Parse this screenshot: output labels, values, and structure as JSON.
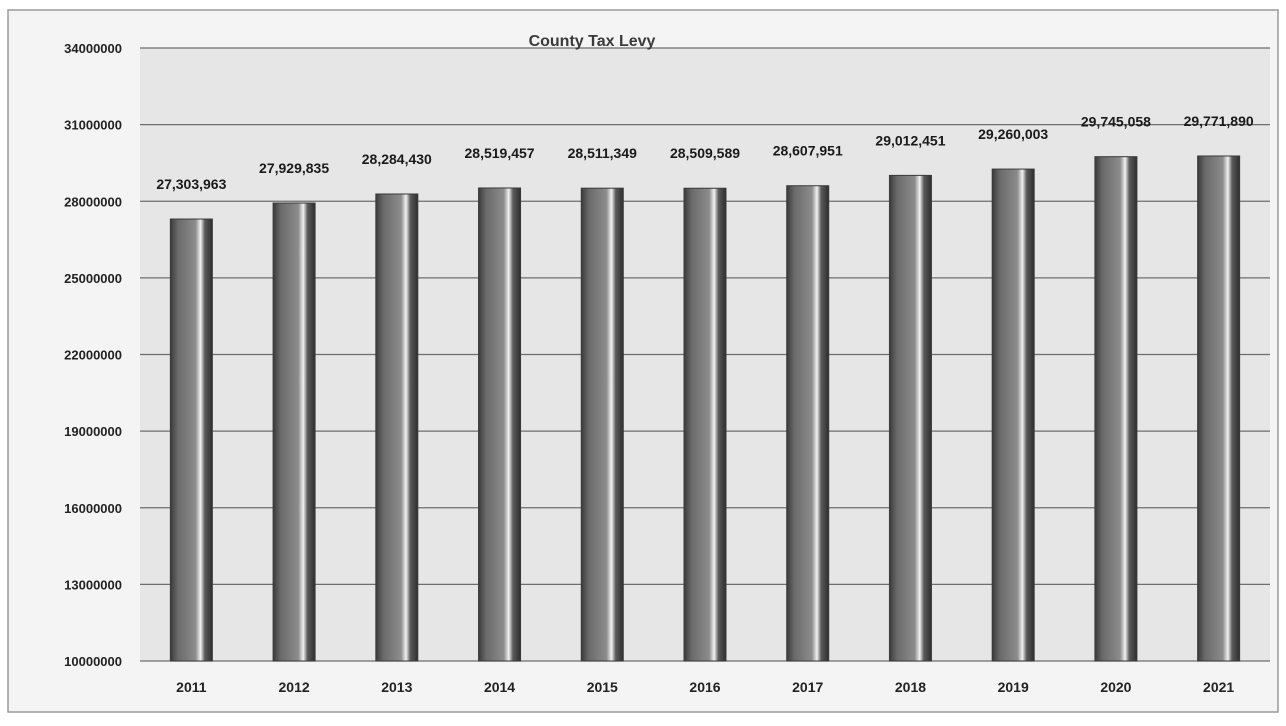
{
  "chart_data": {
    "type": "bar",
    "title": "County Tax Levy",
    "xlabel": "",
    "ylabel": "",
    "categories": [
      "2011",
      "2012",
      "2013",
      "2014",
      "2015",
      "2016",
      "2017",
      "2018",
      "2019",
      "2020",
      "2021"
    ],
    "values": [
      27303963,
      27929835,
      28284430,
      28519457,
      28511349,
      28509589,
      28607951,
      29012451,
      29260003,
      29745058,
      29771890
    ],
    "data_labels": [
      "27,303,963",
      "27,929,835",
      "28,284,430",
      "28,519,457",
      "28,511,349",
      "28,509,589",
      "28,607,951",
      "29,012,451",
      "29,260,003",
      "29,745,058",
      "29,771,890"
    ],
    "ylim": [
      10000000,
      34000000
    ],
    "yticks": [
      10000000,
      13000000,
      16000000,
      19000000,
      22000000,
      25000000,
      28000000,
      31000000,
      34000000
    ],
    "ytick_labels": [
      "10000000",
      "13000000",
      "16000000",
      "19000000",
      "22000000",
      "25000000",
      "28000000",
      "31000000",
      "34000000"
    ],
    "grid": true,
    "legend": "none",
    "colors": {
      "bar": "#7a7a7a",
      "bar_dark": "#3a3a3a",
      "bar_highlight": "#f2f2f2",
      "grid": "#6e6e6e",
      "plot_bg": "#e6e6e6",
      "frame": "#9a9a9a"
    }
  }
}
